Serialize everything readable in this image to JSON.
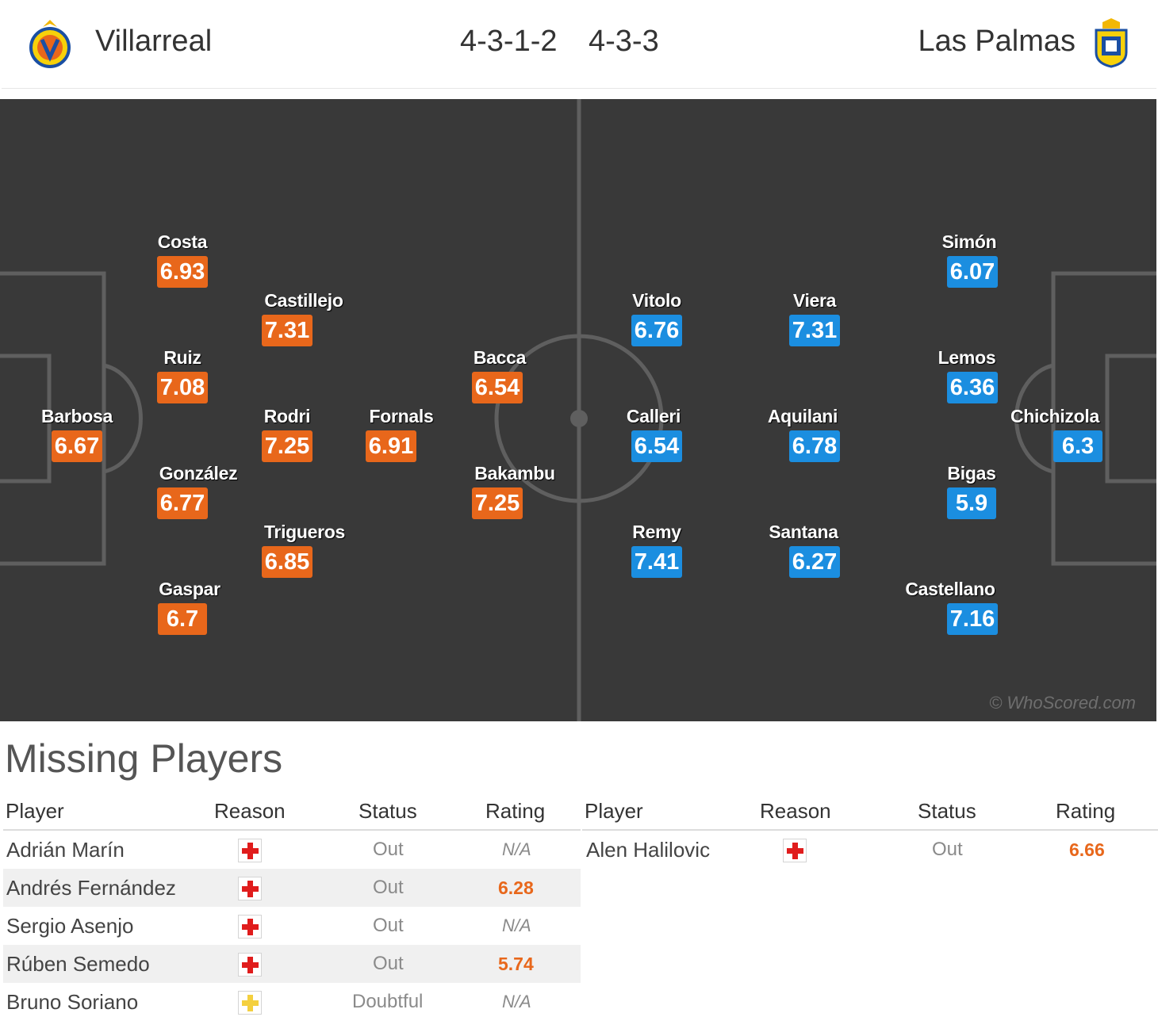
{
  "header": {
    "home_team": "Villarreal",
    "away_team": "Las Palmas",
    "home_formation": "4-3-1-2",
    "away_formation": "4-3-3",
    "home_crest": "villarreal-crest-icon",
    "away_crest": "las-palmas-crest-icon"
  },
  "pitch": {
    "watermark": "© WhoScored.com",
    "home_color": "#e8671b",
    "away_color": "#1b8ee0",
    "home_players": [
      {
        "name": "Barbosa",
        "rating": "6.67"
      },
      {
        "name": "Costa",
        "rating": "6.93"
      },
      {
        "name": "Ruiz",
        "rating": "7.08"
      },
      {
        "name": "González",
        "rating": "6.77"
      },
      {
        "name": "Gaspar",
        "rating": "6.7"
      },
      {
        "name": "Castillejo",
        "rating": "7.31"
      },
      {
        "name": "Rodri",
        "rating": "7.25"
      },
      {
        "name": "Trigueros",
        "rating": "6.85"
      },
      {
        "name": "Fornals",
        "rating": "6.91"
      },
      {
        "name": "Bacca",
        "rating": "6.54"
      },
      {
        "name": "Bakambu",
        "rating": "7.25"
      }
    ],
    "away_players": [
      {
        "name": "Chichizola",
        "rating": "6.3"
      },
      {
        "name": "Simón",
        "rating": "6.07"
      },
      {
        "name": "Lemos",
        "rating": "6.36"
      },
      {
        "name": "Bigas",
        "rating": "5.9"
      },
      {
        "name": "Castellano",
        "rating": "7.16"
      },
      {
        "name": "Viera",
        "rating": "7.31"
      },
      {
        "name": "Aquilani",
        "rating": "6.78"
      },
      {
        "name": "Santana",
        "rating": "6.27"
      },
      {
        "name": "Vitolo",
        "rating": "6.76"
      },
      {
        "name": "Calleri",
        "rating": "6.54"
      },
      {
        "name": "Remy",
        "rating": "7.41"
      }
    ]
  },
  "missing": {
    "title": "Missing Players",
    "columns": {
      "player": "Player",
      "reason": "Reason",
      "status": "Status",
      "rating": "Rating"
    },
    "home": [
      {
        "player": "Adrián Marín",
        "reason": "injury",
        "status": "Out",
        "rating": "N/A"
      },
      {
        "player": "Andrés Fernández",
        "reason": "injury",
        "status": "Out",
        "rating": "6.28"
      },
      {
        "player": "Sergio Asenjo",
        "reason": "injury",
        "status": "Out",
        "rating": "N/A"
      },
      {
        "player": "Rúben Semedo",
        "reason": "injury",
        "status": "Out",
        "rating": "5.74"
      },
      {
        "player": "Bruno Soriano",
        "reason": "doubtful",
        "status": "Doubtful",
        "rating": "N/A"
      }
    ],
    "away": [
      {
        "player": "Alen Halilovic",
        "reason": "injury",
        "status": "Out",
        "rating": "6.66"
      }
    ]
  }
}
